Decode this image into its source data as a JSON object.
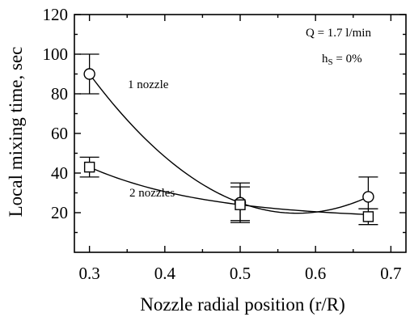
{
  "chart_data": {
    "type": "scatter",
    "xlabel": "Nozzle radial position (r/R)",
    "ylabel": "Local mixing time, sec",
    "xlim": [
      0.28,
      0.72
    ],
    "ylim": [
      0,
      120
    ],
    "x_ticks": [
      {
        "value": 0.3,
        "label": "0.3"
      },
      {
        "value": 0.4,
        "label": "0.4"
      },
      {
        "value": 0.5,
        "label": "0.5"
      },
      {
        "value": 0.6,
        "label": "0.6"
      },
      {
        "value": 0.7,
        "label": "0.7"
      }
    ],
    "y_ticks": [
      {
        "value": 20,
        "label": "20"
      },
      {
        "value": 40,
        "label": "40"
      },
      {
        "value": 60,
        "label": "60"
      },
      {
        "value": 80,
        "label": "80"
      },
      {
        "value": 100,
        "label": "100"
      },
      {
        "value": 120,
        "label": "120"
      }
    ],
    "grid": false,
    "series": [
      {
        "name": "1 nozzle",
        "marker": "circle",
        "x": [
          0.3,
          0.5,
          0.67
        ],
        "y": [
          90,
          25,
          28
        ],
        "err_low": [
          80,
          16,
          22
        ],
        "err_high": [
          100,
          33,
          38
        ]
      },
      {
        "name": "2 nozzles",
        "marker": "square",
        "x": [
          0.3,
          0.5,
          0.67
        ],
        "y": [
          43,
          24,
          18
        ],
        "err_low": [
          38,
          15,
          14
        ],
        "err_high": [
          48,
          35,
          22
        ]
      }
    ],
    "annotations": {
      "flow_rate": "Q = 1.7 l/min",
      "height_prefix": "h",
      "height_subscript": "S",
      "height_suffix": " = 0%"
    }
  }
}
